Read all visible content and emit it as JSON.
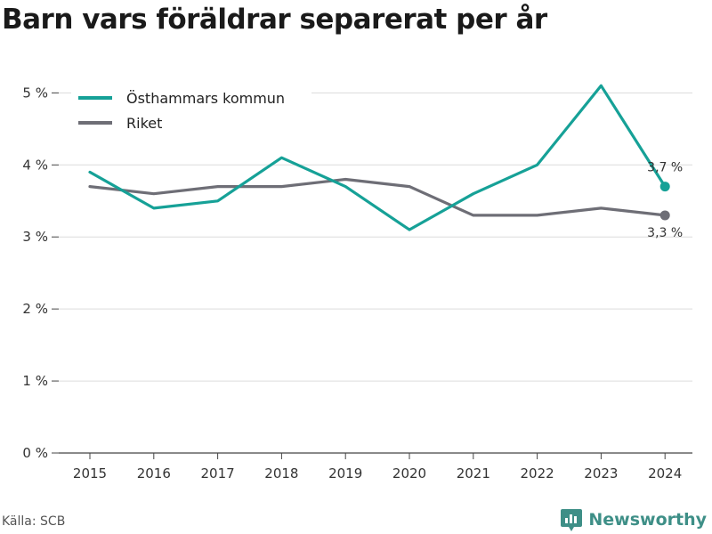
{
  "title": "Barn vars föräldrar separerat per år",
  "source": "Källa: SCB",
  "brand": "Newsworthy",
  "colors": {
    "primary": "#16a197",
    "secondary": "#6e6e76",
    "brand": "#3e8f87",
    "grid": "#dcdcdc"
  },
  "chart_data": {
    "type": "line",
    "title": "Barn vars föräldrar separerat per år",
    "xlabel": "",
    "ylabel": "",
    "categories": [
      "2015",
      "2016",
      "2017",
      "2018",
      "2019",
      "2020",
      "2021",
      "2022",
      "2023",
      "2024"
    ],
    "y_ticks": [
      "0 %",
      "1 %",
      "2 %",
      "3 %",
      "4 %",
      "5 %"
    ],
    "ylim": [
      0,
      5.4
    ],
    "grid": true,
    "legend_position": "top-left",
    "series": [
      {
        "name": "Östhammars kommun",
        "color": "#16a197",
        "values": [
          3.9,
          3.4,
          3.5,
          4.1,
          3.7,
          3.1,
          3.6,
          4.0,
          5.1,
          3.7
        ],
        "end_label": "3,7 %"
      },
      {
        "name": "Riket",
        "color": "#6e6e76",
        "values": [
          3.7,
          3.6,
          3.7,
          3.7,
          3.8,
          3.7,
          3.3,
          3.3,
          3.4,
          3.3
        ],
        "end_label": "3,3 %"
      }
    ]
  }
}
